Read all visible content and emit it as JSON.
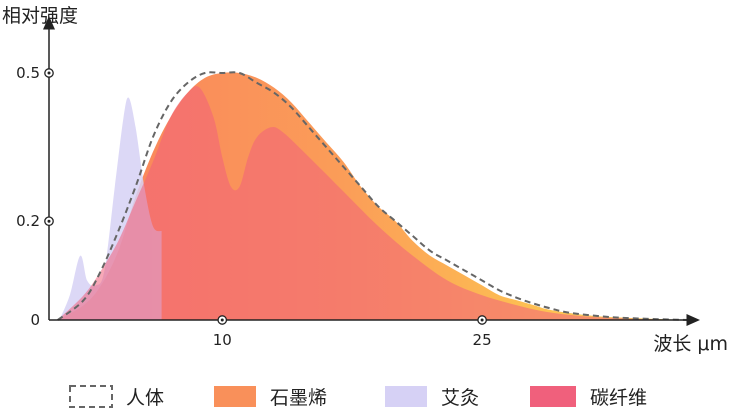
{
  "chart_data": {
    "type": "area",
    "ylabel": "相对强度",
    "xlabel": "波长 μm",
    "xlim": [
      0,
      37
    ],
    "ylim": [
      0,
      0.5
    ],
    "x_ticks": [
      {
        "value": 10,
        "label": "10"
      },
      {
        "value": 25,
        "label": "25"
      }
    ],
    "y_ticks": [
      {
        "value": 0,
        "label": "0"
      },
      {
        "value": 0.2,
        "label": "0.2"
      },
      {
        "value": 0.5,
        "label": "0.5"
      }
    ],
    "legend_position": "bottom",
    "series": [
      {
        "name": "石墨烯",
        "key": "graphene",
        "style": "gradient-area",
        "colors": [
          "#f9805d",
          "#fdbf52",
          "#fdd35a"
        ],
        "points": [
          [
            0.5,
            0
          ],
          [
            2,
            0.03
          ],
          [
            3,
            0.07
          ],
          [
            4,
            0.14
          ],
          [
            5,
            0.25
          ],
          [
            6,
            0.34
          ],
          [
            7,
            0.41
          ],
          [
            8,
            0.46
          ],
          [
            9,
            0.49
          ],
          [
            10,
            0.5
          ],
          [
            11,
            0.5
          ],
          [
            12,
            0.49
          ],
          [
            13,
            0.47
          ],
          [
            14,
            0.44
          ],
          [
            15,
            0.4
          ],
          [
            16,
            0.36
          ],
          [
            17,
            0.32
          ],
          [
            18,
            0.27
          ],
          [
            19,
            0.23
          ],
          [
            20,
            0.2
          ],
          [
            21,
            0.16
          ],
          [
            22,
            0.13
          ],
          [
            23,
            0.11
          ],
          [
            24,
            0.09
          ],
          [
            25,
            0.07
          ],
          [
            26,
            0.05
          ],
          [
            27,
            0.04
          ],
          [
            28,
            0.03
          ],
          [
            29,
            0.02
          ],
          [
            31,
            0.01
          ],
          [
            33,
            0.005
          ],
          [
            37,
            0
          ]
        ]
      },
      {
        "name": "艾灸",
        "key": "moxa",
        "style": "area",
        "colors": [
          "#d6d1f5"
        ],
        "points": [
          [
            0.6,
            0
          ],
          [
            1.2,
            0.05
          ],
          [
            1.8,
            0.13
          ],
          [
            2.2,
            0.08
          ],
          [
            2.7,
            0.07
          ],
          [
            3.2,
            0.1
          ],
          [
            3.8,
            0.27
          ],
          [
            4.3,
            0.41
          ],
          [
            4.6,
            0.45
          ],
          [
            5,
            0.39
          ],
          [
            5.5,
            0.27
          ],
          [
            6,
            0.19
          ],
          [
            6.5,
            0.18
          ]
        ]
      },
      {
        "name": "碳纤维",
        "key": "carbon",
        "style": "area",
        "colors": [
          "#f0607c"
        ],
        "points": [
          [
            0.5,
            0
          ],
          [
            2,
            0.05
          ],
          [
            3,
            0.1
          ],
          [
            4,
            0.16
          ],
          [
            5,
            0.24
          ],
          [
            6,
            0.32
          ],
          [
            7,
            0.41
          ],
          [
            8,
            0.46
          ],
          [
            8.7,
            0.47
          ],
          [
            9.5,
            0.41
          ],
          [
            10,
            0.33
          ],
          [
            10.5,
            0.27
          ],
          [
            11,
            0.27
          ],
          [
            11.5,
            0.33
          ],
          [
            12,
            0.37
          ],
          [
            12.8,
            0.39
          ],
          [
            13.5,
            0.38
          ],
          [
            15,
            0.33
          ],
          [
            17,
            0.26
          ],
          [
            19,
            0.19
          ],
          [
            21,
            0.13
          ],
          [
            23,
            0.08
          ],
          [
            25,
            0.05
          ],
          [
            27,
            0.03
          ],
          [
            29,
            0.015
          ],
          [
            32,
            0.005
          ],
          [
            37,
            0
          ]
        ]
      },
      {
        "name": "人体",
        "key": "human",
        "style": "dashed-line",
        "colors": [
          "#666666"
        ],
        "points": [
          [
            0.5,
            0
          ],
          [
            2,
            0.04
          ],
          [
            3,
            0.1
          ],
          [
            4,
            0.18
          ],
          [
            5,
            0.27
          ],
          [
            6,
            0.37
          ],
          [
            7,
            0.44
          ],
          [
            8,
            0.48
          ],
          [
            9,
            0.5
          ],
          [
            10,
            0.5
          ],
          [
            11,
            0.5
          ],
          [
            12,
            0.48
          ],
          [
            13,
            0.46
          ],
          [
            14,
            0.43
          ],
          [
            15,
            0.39
          ],
          [
            16,
            0.35
          ],
          [
            17,
            0.31
          ],
          [
            18,
            0.27
          ],
          [
            19,
            0.23
          ],
          [
            20,
            0.2
          ],
          [
            21,
            0.17
          ],
          [
            22,
            0.14
          ],
          [
            23,
            0.12
          ],
          [
            24,
            0.1
          ],
          [
            25,
            0.08
          ],
          [
            26,
            0.06
          ],
          [
            27,
            0.045
          ],
          [
            28,
            0.033
          ],
          [
            29,
            0.023
          ],
          [
            30,
            0.015
          ],
          [
            32,
            0.007
          ],
          [
            34,
            0.003
          ],
          [
            37,
            0
          ]
        ]
      }
    ],
    "legend": [
      {
        "label": "人体",
        "key": "human"
      },
      {
        "label": "石墨烯",
        "key": "graphene"
      },
      {
        "label": "艾灸",
        "key": "moxa"
      },
      {
        "label": "碳纤维",
        "key": "carbon"
      }
    ]
  }
}
